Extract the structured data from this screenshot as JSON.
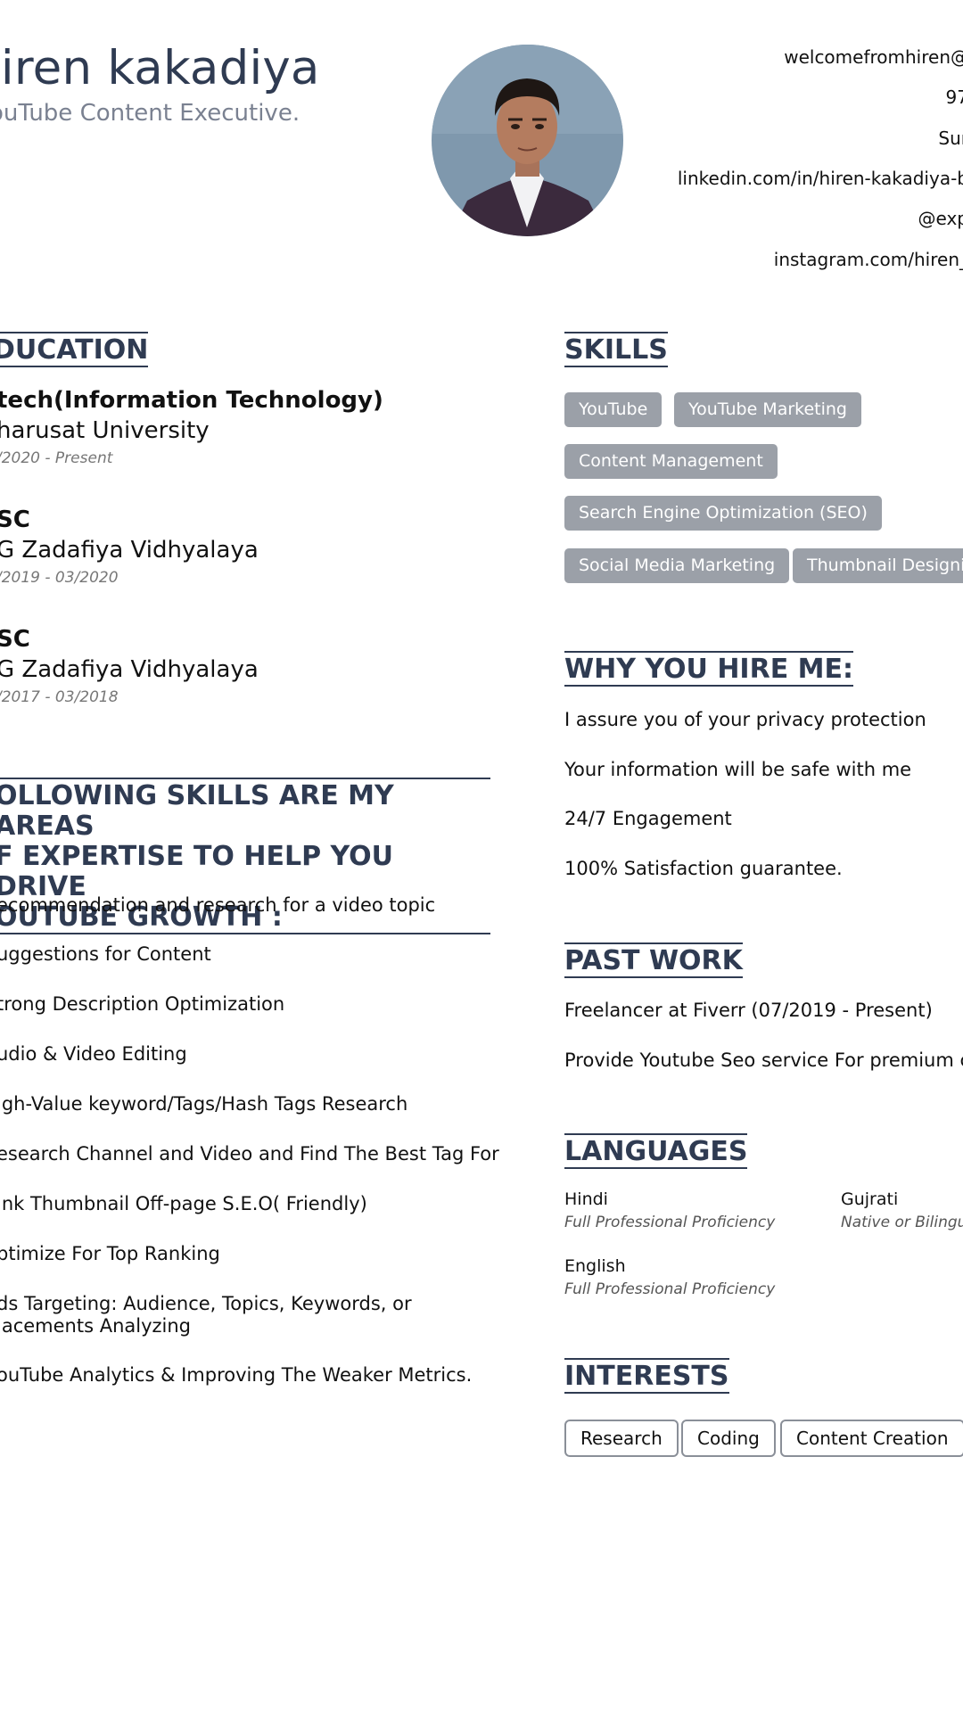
{
  "header": {
    "name": "liren kakadiya",
    "title": "ouTube Content Executive.",
    "contacts": [
      "welcomefromhiren@",
      "97",
      "Sur",
      "linkedin.com/in/hiren-kakadiya-b",
      "@exp",
      "instagram.com/hiren_"
    ]
  },
  "education": {
    "heading": "DUCATION",
    "entries": [
      {
        "degree": "tech(Information Technology)",
        "school": "harusat University",
        "date": "/2020 - Present"
      },
      {
        "degree": "SC",
        "school": "G Zadafiya Vidhyalaya",
        "date": "/2019 - 03/2020"
      },
      {
        "degree": "SC",
        "school": "G Zadafiya Vidhyalaya",
        "date": "/2017 - 03/2018"
      }
    ]
  },
  "expertise": {
    "heading_lines": [
      "OLLOWING SKILLS ARE MY AREAS",
      "F EXPERTISE TO HELP YOU DRIVE",
      "OUTUBE GROWTH :"
    ],
    "items": [
      "ecommendation and research for a video topic",
      "uggestions for Content",
      "trong Description Optimization",
      "udio & Video Editing",
      "igh-Value keyword/Tags/Hash Tags Research",
      "esearch Channel and Video and Find The Best Tag For",
      "ink Thumbnail Off-page S.E.O( Friendly)",
      "ptimize For Top Ranking",
      "ds Targeting: Audience, Topics, Keywords, or",
      "lacements Analyzing",
      "ouTube Analytics & Improving The Weaker Metrics."
    ]
  },
  "skills": {
    "heading": "SKILLS",
    "tags": [
      "YouTube",
      "YouTube Marketing",
      "Content Management",
      "Search Engine Optimization (SEO)",
      "Social Media Marketing",
      "Thumbnail Designin"
    ]
  },
  "why": {
    "heading": "WHY YOU HIRE ME:",
    "items": [
      "I assure you of your privacy protection",
      "Your information will be safe with me",
      "24/7 Engagement",
      "100% Satisfaction guarantee."
    ]
  },
  "past_work": {
    "heading": "PAST WORK",
    "items": [
      "Freelancer at Fiverr (07/2019 - Present)",
      "Provide Youtube Seo service For premium c"
    ]
  },
  "languages": {
    "heading": "LANGUAGES",
    "items": [
      {
        "name": "Hindi",
        "level": "Full Professional Proficiency"
      },
      {
        "name": "Gujrati",
        "level": "Native or Bilingu"
      },
      {
        "name": "English",
        "level": "Full Professional Proficiency"
      }
    ]
  },
  "interests": {
    "heading": "INTERESTS",
    "tags": [
      "Research",
      "Coding",
      "Content Creation"
    ]
  },
  "colors": {
    "heading": "#2f3b52",
    "tag_bg": "#9ba0a8",
    "subtitle": "#7a8191"
  },
  "icons": {
    "photo": "profile-photo"
  }
}
